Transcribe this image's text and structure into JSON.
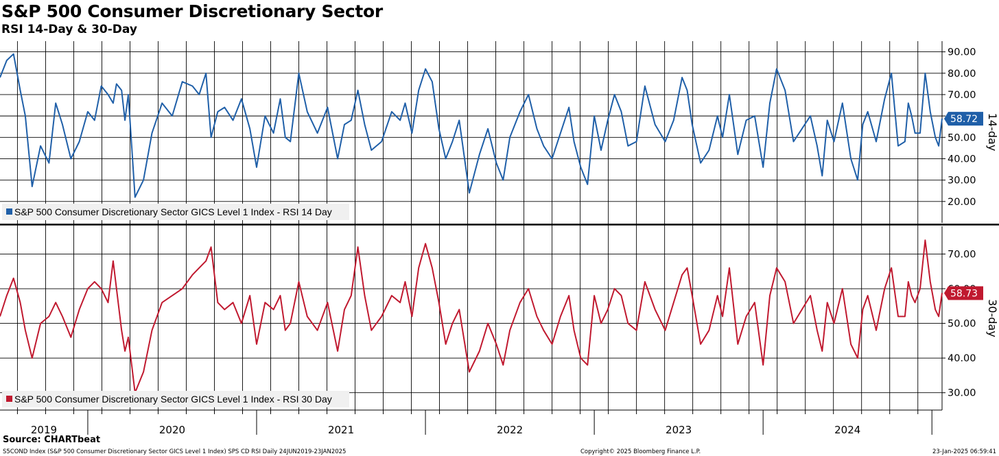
{
  "header": {
    "title": "S&P 500 Consumer Discretionary Sector",
    "subtitle": "RSI 14-Day & 30-Day"
  },
  "footer": {
    "source": "Source: CHARTbeat",
    "left": "S5COND Index (S&P 500 Consumer Discretionary Sector GICS Level 1 Index) SPS CD RSI  Daily 24JUN2019-23JAN2025",
    "middle": "Copyright© 2025 Bloomberg Finance L.P.",
    "right": "23-Jan-2025 06:59:41"
  },
  "colors": {
    "rsi14": "#1f5fa8",
    "rsi30": "#c0192f",
    "grid": "#000000",
    "legend_bg": "#f0f0f0"
  },
  "chart_data": [
    {
      "type": "line",
      "name": "rsi-14",
      "side_label": "14-day",
      "legend": "S&P 500 Consumer Discretionary Sector GICS Level 1 Index - RSI 14 Day",
      "last_value_label": "58.72",
      "ylim": [
        10,
        95
      ],
      "yticks": [
        20,
        30,
        40,
        50,
        60,
        70,
        80,
        90
      ],
      "ytick_labels": [
        "20.00",
        "30.00",
        "40.00",
        "50.00",
        "60.00",
        "70.00",
        "80.00",
        "90.00"
      ],
      "xlim": [
        2019.48,
        2025.06
      ],
      "x": [
        2019.48,
        2019.52,
        2019.56,
        2019.6,
        2019.63,
        2019.67,
        2019.72,
        2019.77,
        2019.81,
        2019.85,
        2019.9,
        2019.95,
        2020.0,
        2020.04,
        2020.08,
        2020.12,
        2020.15,
        2020.17,
        2020.2,
        2020.22,
        2020.24,
        2020.28,
        2020.33,
        2020.38,
        2020.44,
        2020.5,
        2020.56,
        2020.62,
        2020.66,
        2020.7,
        2020.73,
        2020.77,
        2020.81,
        2020.86,
        2020.91,
        2020.96,
        2021.0,
        2021.05,
        2021.1,
        2021.14,
        2021.17,
        2021.2,
        2021.25,
        2021.3,
        2021.36,
        2021.42,
        2021.48,
        2021.52,
        2021.56,
        2021.6,
        2021.64,
        2021.68,
        2021.74,
        2021.8,
        2021.85,
        2021.88,
        2021.92,
        2021.96,
        2022.0,
        2022.04,
        2022.08,
        2022.12,
        2022.16,
        2022.2,
        2022.26,
        2022.32,
        2022.37,
        2022.42,
        2022.46,
        2022.5,
        2022.56,
        2022.61,
        2022.66,
        2022.7,
        2022.75,
        2022.8,
        2022.85,
        2022.88,
        2022.92,
        2022.96,
        2023.0,
        2023.04,
        2023.08,
        2023.12,
        2023.16,
        2023.2,
        2023.25,
        2023.3,
        2023.36,
        2023.42,
        2023.47,
        2023.52,
        2023.55,
        2023.58,
        2023.63,
        2023.68,
        2023.73,
        2023.76,
        2023.8,
        2023.85,
        2023.9,
        2023.95,
        2024.0,
        2024.04,
        2024.08,
        2024.13,
        2024.18,
        2024.23,
        2024.28,
        2024.32,
        2024.35,
        2024.38,
        2024.42,
        2024.47,
        2024.52,
        2024.56,
        2024.59,
        2024.62,
        2024.67,
        2024.72,
        2024.76,
        2024.8,
        2024.84,
        2024.86,
        2024.88,
        2024.9,
        2024.93,
        2024.96,
        2024.99,
        2025.02,
        2025.04,
        2025.06
      ],
      "y": [
        78,
        86,
        89,
        72,
        60,
        27,
        46,
        38,
        66,
        56,
        40,
        48,
        62,
        58,
        74,
        70,
        66,
        75,
        72,
        58,
        70,
        22,
        30,
        52,
        66,
        60,
        76,
        74,
        70,
        80,
        50,
        62,
        64,
        58,
        68,
        54,
        36,
        60,
        52,
        68,
        50,
        48,
        80,
        62,
        52,
        64,
        40,
        56,
        58,
        72,
        56,
        44,
        48,
        62,
        58,
        66,
        52,
        72,
        82,
        76,
        54,
        40,
        48,
        58,
        24,
        42,
        54,
        38,
        30,
        50,
        62,
        70,
        54,
        46,
        40,
        52,
        64,
        48,
        36,
        28,
        60,
        44,
        58,
        70,
        62,
        46,
        48,
        74,
        56,
        48,
        58,
        78,
        72,
        56,
        38,
        44,
        60,
        50,
        70,
        42,
        58,
        60,
        36,
        66,
        82,
        72,
        48,
        54,
        60,
        46,
        32,
        58,
        48,
        66,
        40,
        30,
        56,
        62,
        48,
        68,
        80,
        46,
        48,
        66,
        60,
        52,
        52,
        80,
        62,
        50,
        46,
        58.72
      ]
    },
    {
      "type": "line",
      "name": "rsi-30",
      "side_label": "30-day",
      "legend": "S&P 500 Consumer Discretionary Sector GICS Level 1 Index - RSI 30 Day",
      "last_value_label": "58.73",
      "ylim": [
        25,
        78
      ],
      "yticks": [
        30,
        40,
        50,
        60,
        70
      ],
      "ytick_labels": [
        "30.00",
        "40.00",
        "50.00",
        "60.00",
        "70.00"
      ],
      "xlim": [
        2019.48,
        2025.06
      ],
      "x": [
        2019.48,
        2019.52,
        2019.56,
        2019.6,
        2019.63,
        2019.67,
        2019.72,
        2019.77,
        2019.81,
        2019.85,
        2019.9,
        2019.95,
        2020.0,
        2020.04,
        2020.08,
        2020.12,
        2020.15,
        2020.17,
        2020.2,
        2020.22,
        2020.24,
        2020.28,
        2020.33,
        2020.38,
        2020.44,
        2020.5,
        2020.56,
        2020.62,
        2020.66,
        2020.7,
        2020.73,
        2020.77,
        2020.81,
        2020.86,
        2020.91,
        2020.96,
        2021.0,
        2021.05,
        2021.1,
        2021.14,
        2021.17,
        2021.2,
        2021.25,
        2021.3,
        2021.36,
        2021.42,
        2021.48,
        2021.52,
        2021.56,
        2021.6,
        2021.64,
        2021.68,
        2021.74,
        2021.8,
        2021.85,
        2021.88,
        2021.92,
        2021.96,
        2022.0,
        2022.04,
        2022.08,
        2022.12,
        2022.16,
        2022.2,
        2022.26,
        2022.32,
        2022.37,
        2022.42,
        2022.46,
        2022.5,
        2022.56,
        2022.61,
        2022.66,
        2022.7,
        2022.75,
        2022.8,
        2022.85,
        2022.88,
        2022.92,
        2022.96,
        2023.0,
        2023.04,
        2023.08,
        2023.12,
        2023.16,
        2023.2,
        2023.25,
        2023.3,
        2023.36,
        2023.42,
        2023.47,
        2023.52,
        2023.55,
        2023.58,
        2023.63,
        2023.68,
        2023.73,
        2023.76,
        2023.8,
        2023.85,
        2023.9,
        2023.95,
        2024.0,
        2024.04,
        2024.08,
        2024.13,
        2024.18,
        2024.23,
        2024.28,
        2024.32,
        2024.35,
        2024.38,
        2024.42,
        2024.47,
        2024.52,
        2024.56,
        2024.59,
        2024.62,
        2024.67,
        2024.72,
        2024.76,
        2024.8,
        2024.84,
        2024.86,
        2024.88,
        2024.9,
        2024.93,
        2024.96,
        2024.99,
        2025.02,
        2025.04,
        2025.06
      ],
      "y": [
        52,
        58,
        63,
        56,
        48,
        40,
        50,
        52,
        56,
        52,
        46,
        54,
        60,
        62,
        60,
        56,
        68,
        60,
        48,
        42,
        46,
        30,
        36,
        48,
        56,
        58,
        60,
        64,
        66,
        68,
        72,
        56,
        54,
        56,
        50,
        58,
        44,
        56,
        54,
        58,
        48,
        50,
        62,
        52,
        48,
        56,
        42,
        54,
        58,
        72,
        58,
        48,
        52,
        58,
        56,
        62,
        52,
        66,
        73,
        66,
        56,
        44,
        50,
        54,
        36,
        42,
        50,
        44,
        38,
        48,
        56,
        60,
        52,
        48,
        44,
        52,
        58,
        48,
        40,
        38,
        58,
        50,
        54,
        60,
        58,
        50,
        48,
        62,
        54,
        48,
        56,
        64,
        66,
        58,
        44,
        48,
        58,
        52,
        66,
        44,
        52,
        56,
        38,
        58,
        66,
        62,
        50,
        54,
        58,
        48,
        42,
        56,
        50,
        60,
        44,
        40,
        54,
        58,
        48,
        60,
        66,
        52,
        52,
        62,
        58,
        56,
        60,
        74,
        62,
        54,
        52,
        58.73
      ]
    }
  ],
  "x_axis": {
    "year_labels": [
      "2019",
      "2020",
      "2021",
      "2022",
      "2023",
      "2024"
    ],
    "year_label_positions": [
      2019.74,
      2020.5,
      2021.5,
      2022.5,
      2023.5,
      2024.5
    ],
    "year_boundaries": [
      2020,
      2021,
      2022,
      2023,
      2024,
      2025
    ],
    "gridlines": [
      2019.5833,
      2019.75,
      2019.9167,
      2020.0833,
      2020.25,
      2020.4167,
      2020.5833,
      2020.75,
      2020.9167,
      2021.0833,
      2021.25,
      2021.4167,
      2021.5833,
      2021.75,
      2021.9167,
      2022.0833,
      2022.25,
      2022.4167,
      2022.5833,
      2022.75,
      2022.9167,
      2023.0833,
      2023.25,
      2023.4167,
      2023.5833,
      2023.75,
      2023.9167,
      2024.0833,
      2024.25,
      2024.4167,
      2024.5833,
      2024.75,
      2024.9167
    ]
  }
}
